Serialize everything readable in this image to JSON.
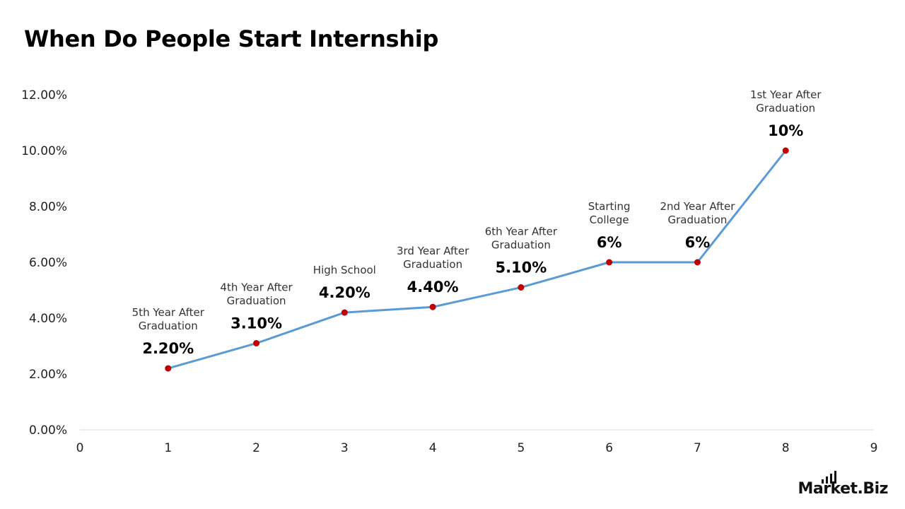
{
  "title": "When Do People Start Internship",
  "brand": "Market.Biz",
  "colors": {
    "line": "#5b9bd5",
    "marker": "#c00000",
    "axis": "#d9d9d9"
  },
  "chart_data": {
    "type": "line",
    "title": "When Do People Start Internship",
    "xlabel": "",
    "ylabel": "",
    "xlim": [
      0,
      9
    ],
    "ylim": [
      0,
      12
    ],
    "x_ticks": [
      "0",
      "1",
      "2",
      "3",
      "4",
      "5",
      "6",
      "7",
      "8",
      "9"
    ],
    "y_ticks": [
      "0.00%",
      "2.00%",
      "4.00%",
      "6.00%",
      "8.00%",
      "10.00%",
      "12.00%"
    ],
    "grid": false,
    "legend": "none",
    "series": [
      {
        "points": [
          {
            "x": 1,
            "y": 2.2,
            "label": [
              "5th Year After",
              "Graduation"
            ],
            "value_label": "2.20%"
          },
          {
            "x": 2,
            "y": 3.1,
            "label": [
              "4th Year After",
              "Graduation"
            ],
            "value_label": "3.10%"
          },
          {
            "x": 3,
            "y": 4.2,
            "label": [
              "High School"
            ],
            "value_label": "4.20%"
          },
          {
            "x": 4,
            "y": 4.4,
            "label": [
              "3rd Year After",
              "Graduation"
            ],
            "value_label": "4.40%"
          },
          {
            "x": 5,
            "y": 5.1,
            "label": [
              "6th Year After",
              "Graduation"
            ],
            "value_label": "5.10%"
          },
          {
            "x": 6,
            "y": 6.0,
            "label": [
              "Starting",
              "College"
            ],
            "value_label": "6%"
          },
          {
            "x": 7,
            "y": 6.0,
            "label": [
              "2nd Year After",
              "Graduation"
            ],
            "value_label": "6%"
          },
          {
            "x": 8,
            "y": 10.0,
            "label": [
              "1st Year After",
              "Graduation"
            ],
            "value_label": "10%"
          }
        ]
      }
    ]
  }
}
